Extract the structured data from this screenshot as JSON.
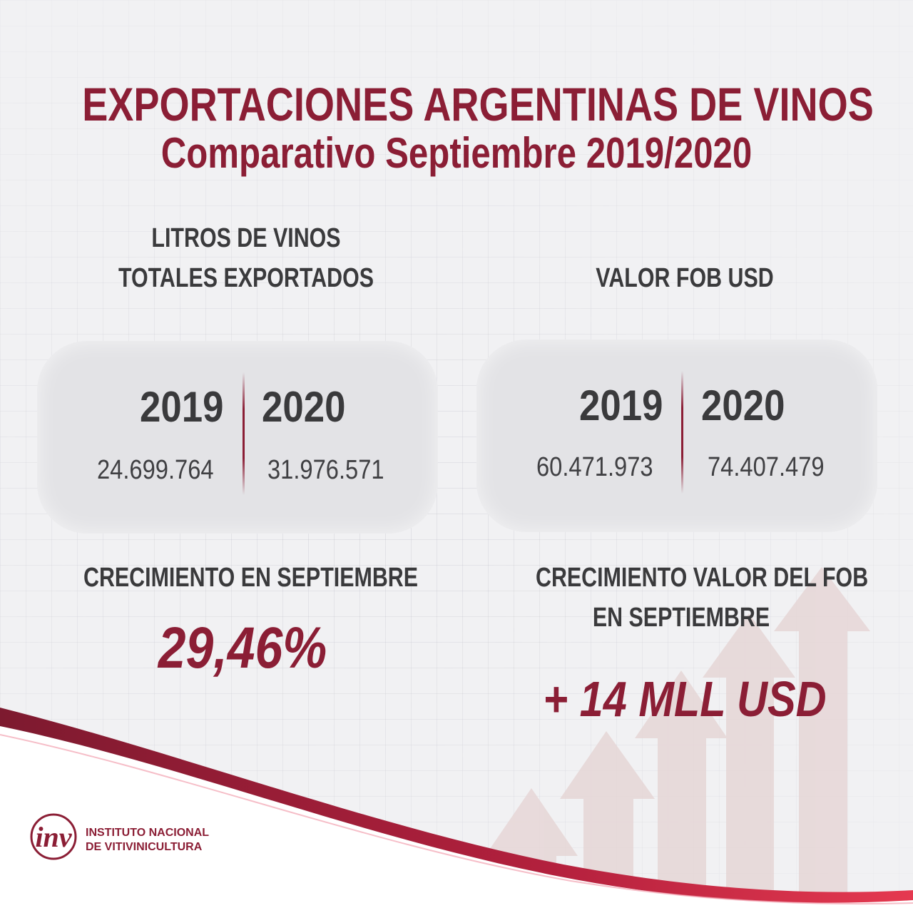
{
  "title": {
    "line1": "EXPORTACIONES ARGENTINAS DE VINOS",
    "line2": "Comparativo Septiembre  2019/2020"
  },
  "litros": {
    "heading_line1": "LITROS DE VINOS",
    "heading_line2": "TOTALES EXPORTADOS",
    "year_a": "2019",
    "year_b": "2020",
    "value_a": "24.699.764",
    "value_b": "31.976.571",
    "growth_label": "CRECIMIENTO EN SEPTIEMBRE",
    "growth_value": "29,46%"
  },
  "fob": {
    "heading": "VALOR FOB USD",
    "year_a": "2019",
    "year_b": "2020",
    "value_a": "60.471.973",
    "value_b": "74.407.479",
    "growth_label_line1": "CRECIMIENTO VALOR DEL FOB",
    "growth_label_line2": "EN SEPTIEMBRE",
    "growth_value": "+ 14 MLL USD"
  },
  "logo": {
    "mark": "inv",
    "name_line1": "INSTITUTO NACIONAL",
    "name_line2": "DE VITIVINICULTURA"
  },
  "colors": {
    "brand": "#8b1e35",
    "text": "#3a3a3c",
    "background": "#f1f1f3",
    "arrows": "#e4d3d3"
  }
}
